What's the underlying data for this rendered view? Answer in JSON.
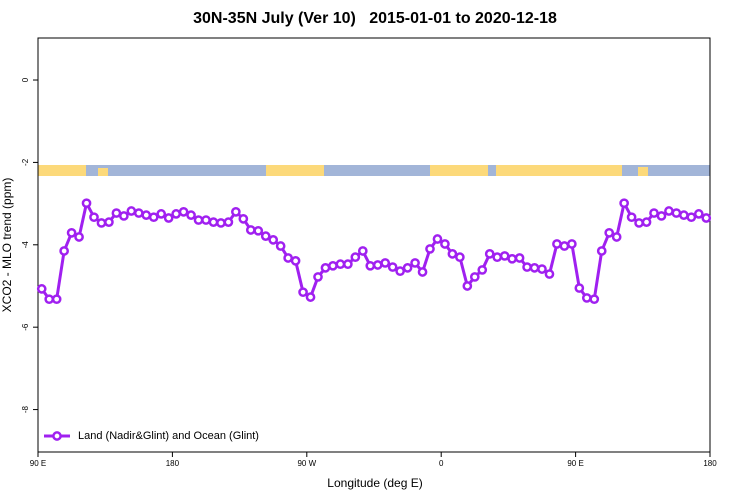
{
  "chart_data": {
    "type": "line",
    "title": "30N-35N July (Ver 10)   2015-01-01 to 2020-12-18",
    "xlabel": "Longitude (deg E)",
    "ylabel": "XCO2 - MLO trend (ppm)",
    "xlim": [
      90,
      540
    ],
    "ylim": [
      -9.03,
      1.02
    ],
    "xticks": [
      {
        "value": 90,
        "label": "90 E"
      },
      180,
      {
        "value": 270,
        "label": "90 W"
      },
      {
        "value": 360,
        "label": "0"
      },
      {
        "value": 450,
        "label": "90 E"
      },
      {
        "value": 540,
        "label": "180"
      }
    ],
    "yticks": [
      0,
      -2,
      -4,
      -6,
      -8
    ],
    "legend": "bottom-left",
    "x": [
      92.5,
      97.5,
      102.5,
      107.5,
      112.5,
      117.5,
      122.5,
      127.5,
      132.5,
      137.5,
      142.5,
      147.5,
      152.5,
      157.5,
      162.5,
      167.5,
      172.5,
      177.5,
      182.5,
      187.5,
      192.5,
      197.5,
      202.5,
      207.5,
      212.5,
      217.5,
      222.5,
      227.5,
      232.5,
      237.5,
      242.5,
      247.5,
      252.5,
      257.5,
      262.5,
      267.5,
      272.5,
      277.5,
      282.5,
      287.5,
      292.5,
      297.5,
      302.5,
      307.5,
      312.5,
      317.5,
      322.5,
      327.5,
      332.5,
      337.5,
      342.5,
      347.5,
      352.5,
      357.5,
      362.5,
      367.5,
      372.5,
      377.5,
      382.5,
      387.5,
      392.5,
      397.5,
      402.5,
      407.5,
      412.5,
      417.5,
      422.5,
      427.5,
      432.5,
      437.5,
      442.5,
      447.5,
      452.5,
      457.5,
      462.5,
      467.5,
      472.5,
      477.5,
      482.5,
      487.5,
      492.5,
      497.5,
      502.5,
      507.5,
      512.5,
      517.5,
      522.5,
      527.5,
      532.5,
      537.5
    ],
    "series": [
      {
        "name": "Land (Nadir&Glint) and Ocean (Glint)",
        "color": "#a020f0",
        "values": [
          -5.07,
          -5.32,
          -5.32,
          -4.15,
          -3.71,
          -3.81,
          -2.99,
          -3.33,
          -3.47,
          -3.45,
          -3.23,
          -3.3,
          -3.18,
          -3.23,
          -3.28,
          -3.33,
          -3.25,
          -3.35,
          -3.25,
          -3.2,
          -3.28,
          -3.4,
          -3.4,
          -3.45,
          -3.47,
          -3.45,
          -3.2,
          -3.37,
          -3.64,
          -3.66,
          -3.79,
          -3.88,
          -4.03,
          -4.32,
          -4.39,
          -5.15,
          -5.27,
          -4.78,
          -4.56,
          -4.51,
          -4.47,
          -4.47,
          -4.3,
          -4.15,
          -4.51,
          -4.49,
          -4.44,
          -4.54,
          -4.64,
          -4.56,
          -4.44,
          -4.66,
          -4.1,
          -3.86,
          -3.98,
          -4.22,
          -4.3,
          -5.0,
          -4.78,
          -4.61,
          -4.22,
          -4.3,
          -4.27,
          -4.34,
          -4.32,
          -4.54,
          -4.56,
          -4.59,
          -4.71,
          -3.98,
          -4.03,
          -3.98,
          -5.05,
          -5.29,
          -5.32,
          -4.15,
          -3.71,
          -3.81,
          -2.99,
          -3.33,
          -3.47,
          -3.45,
          -3.23,
          -3.3,
          -3.18,
          -3.23,
          -3.28,
          -3.33,
          -3.25,
          -3.35
        ]
      }
    ]
  }
}
